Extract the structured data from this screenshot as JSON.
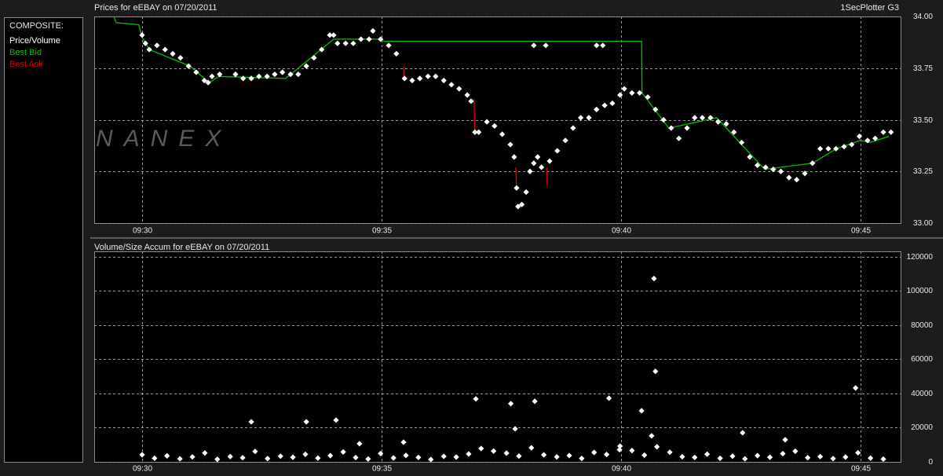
{
  "header": {
    "app": "1SecPlotter G3",
    "watermark": "NANEX"
  },
  "chart_data": [
    {
      "type": "scatter",
      "title": "Prices for  eEBAY  on  07/20/2011",
      "legend_title": "COMPOSITE:",
      "xlim": [
        569,
        585.84
      ],
      "xticks": [
        {
          "value": 570,
          "label": "09:30"
        },
        {
          "value": 575,
          "label": "09:35"
        },
        {
          "value": 580,
          "label": "09:40"
        },
        {
          "value": 585,
          "label": "09:45"
        }
      ],
      "ylim": [
        33,
        34
      ],
      "yticks": [
        {
          "value": 33,
          "label": "33.00"
        },
        {
          "value": 33.25,
          "label": "33.25"
        },
        {
          "value": 33.5,
          "label": "33.50"
        },
        {
          "value": 33.75,
          "label": "33.75"
        },
        {
          "value": 34,
          "label": "34.00"
        }
      ],
      "grid": true,
      "series": [
        {
          "name": "Price/Volume",
          "color": "#ffffff",
          "kind": "markers",
          "x": [
            570.0,
            570.07,
            570.15,
            570.31,
            570.48,
            570.64,
            570.8,
            570.97,
            571.13,
            571.3,
            571.38,
            571.46,
            571.62,
            571.95,
            572.11,
            572.28,
            572.44,
            572.61,
            572.77,
            572.93,
            573.1,
            573.26,
            573.43,
            573.59,
            573.75,
            573.92,
            574.0,
            574.08,
            574.25,
            574.41,
            574.57,
            574.74,
            574.82,
            574.98,
            575.15,
            575.31,
            575.48,
            575.64,
            575.8,
            575.97,
            576.13,
            576.3,
            576.46,
            576.62,
            576.79,
            576.87,
            576.95,
            577.03,
            577.2,
            577.36,
            577.52,
            577.69,
            577.77,
            577.82,
            577.85,
            577.93,
            578.02,
            578.1,
            578.18,
            578.26,
            578.34,
            578.51,
            578.67,
            578.84,
            579.0,
            579.16,
            579.33,
            579.49,
            579.66,
            579.82,
            579.98,
            580.07,
            580.23,
            580.39,
            580.56,
            580.72,
            580.89,
            581.05,
            581.21,
            581.38,
            581.54,
            581.7,
            581.87,
            582.03,
            582.2,
            582.36,
            582.52,
            582.69,
            582.85,
            583.02,
            583.18,
            583.34,
            583.51,
            583.67,
            583.84,
            584.0,
            584.16,
            584.33,
            584.49,
            584.66,
            584.82,
            584.98,
            585.15,
            585.31,
            585.48,
            585.64,
            578.18,
            578.43,
            579.49,
            579.62
          ],
          "values": [
            33.91,
            33.87,
            33.84,
            33.86,
            33.84,
            33.82,
            33.8,
            33.76,
            33.73,
            33.69,
            33.68,
            33.71,
            33.72,
            33.72,
            33.7,
            33.7,
            33.71,
            33.71,
            33.72,
            33.73,
            33.72,
            33.72,
            33.76,
            33.8,
            33.84,
            33.91,
            33.91,
            33.87,
            33.87,
            33.87,
            33.89,
            33.89,
            33.93,
            33.89,
            33.86,
            33.82,
            33.7,
            33.69,
            33.7,
            33.71,
            33.71,
            33.69,
            33.67,
            33.65,
            33.62,
            33.59,
            33.44,
            33.44,
            33.49,
            33.47,
            33.43,
            33.38,
            33.32,
            33.17,
            33.08,
            33.09,
            33.15,
            33.25,
            33.29,
            33.32,
            33.27,
            33.3,
            33.35,
            33.4,
            33.46,
            33.51,
            33.51,
            33.55,
            33.57,
            33.58,
            33.62,
            33.65,
            33.63,
            33.63,
            33.61,
            33.55,
            33.5,
            33.46,
            33.41,
            33.46,
            33.51,
            33.51,
            33.51,
            33.49,
            33.48,
            33.44,
            33.39,
            33.32,
            33.28,
            33.27,
            33.26,
            33.25,
            33.22,
            33.21,
            33.24,
            33.29,
            33.36,
            33.36,
            33.36,
            33.37,
            33.38,
            33.42,
            33.4,
            33.41,
            33.44,
            33.44,
            33.86,
            33.86,
            33.86,
            33.86
          ]
        },
        {
          "name": "Best Bid",
          "color": "#00c000",
          "kind": "line",
          "x": [
            569.41,
            569.46,
            569.93,
            570.0,
            570.15,
            571.0,
            571.4,
            571.6,
            573.0,
            574.0,
            574.9,
            575.07,
            580.43,
            580.44,
            581.0,
            582.0,
            583.0,
            584.0,
            584.5,
            585.0,
            585.2,
            585.6
          ],
          "values": [
            34.0,
            33.97,
            33.96,
            33.9,
            33.84,
            33.76,
            33.68,
            33.71,
            33.7,
            33.89,
            33.89,
            33.88,
            33.88,
            33.63,
            33.46,
            33.51,
            33.26,
            33.29,
            33.36,
            33.4,
            33.39,
            33.42
          ]
        },
        {
          "name": "Best Ask",
          "color": "#e00000",
          "kind": "line",
          "x": [
            575.46,
            575.47,
            null,
            576.93,
            576.95,
            null,
            577.8,
            577.82,
            null,
            578.45,
            578.46
          ],
          "values": [
            33.76,
            33.7,
            null,
            33.6,
            33.45,
            null,
            33.27,
            33.17,
            null,
            33.27,
            33.18
          ]
        }
      ]
    },
    {
      "type": "scatter",
      "title": "Volume/Size Accum for  eEBAY  on  07/20/2011",
      "color": "#ffffff",
      "xlim": [
        569,
        585.84
      ],
      "xticks": [
        {
          "value": 570,
          "label": "09:30"
        },
        {
          "value": 575,
          "label": "09:35"
        },
        {
          "value": 580,
          "label": "09:40"
        },
        {
          "value": 585,
          "label": "09:45"
        }
      ],
      "ylim": [
        0,
        123000
      ],
      "yticks": [
        0,
        20000,
        40000,
        60000,
        80000,
        100000,
        120000
      ],
      "grid": true,
      "x": [
        570.0,
        570.26,
        570.52,
        570.79,
        571.05,
        571.31,
        571.57,
        571.84,
        572.1,
        572.36,
        572.62,
        572.89,
        573.15,
        573.41,
        573.67,
        573.93,
        574.2,
        574.46,
        574.72,
        574.98,
        575.25,
        575.51,
        575.77,
        576.03,
        576.3,
        576.56,
        576.82,
        577.08,
        577.34,
        577.61,
        577.87,
        578.13,
        578.39,
        578.66,
        578.92,
        579.18,
        579.44,
        579.7,
        579.97,
        580.23,
        580.49,
        580.75,
        581.02,
        581.28,
        581.54,
        581.8,
        582.07,
        582.33,
        582.59,
        582.85,
        583.11,
        583.38,
        583.64,
        583.9,
        584.16,
        584.43,
        584.69,
        584.95,
        585.21,
        585.48,
        572.28,
        573.43,
        574.05,
        574.54,
        575.46,
        576.97,
        577.7,
        577.79,
        578.2,
        579.75,
        579.98,
        580.43,
        580.64,
        580.69,
        580.72,
        582.54,
        583.43,
        584.9
      ],
      "values": [
        4200,
        2100,
        3500,
        1800,
        2900,
        5200,
        1500,
        3100,
        2400,
        6100,
        1900,
        3300,
        2700,
        4400,
        2200,
        3600,
        5800,
        2500,
        1700,
        4900,
        2300,
        3800,
        2600,
        1400,
        3200,
        2800,
        4600,
        7800,
        6300,
        5100,
        3400,
        8200,
        4100,
        2900,
        3700,
        2000,
        5500,
        4300,
        7100,
        6600,
        3900,
        8800,
        5600,
        3000,
        2600,
        4500,
        2100,
        3300,
        1800,
        3600,
        2700,
        4800,
        6200,
        2400,
        3100,
        1900,
        2800,
        5300,
        2200,
        1600,
        23400,
        23400,
        24400,
        10600,
        11500,
        36800,
        34000,
        19300,
        35400,
        37200,
        9200,
        29900,
        15200,
        107100,
        52900,
        17000,
        12900,
        43200
      ]
    }
  ]
}
